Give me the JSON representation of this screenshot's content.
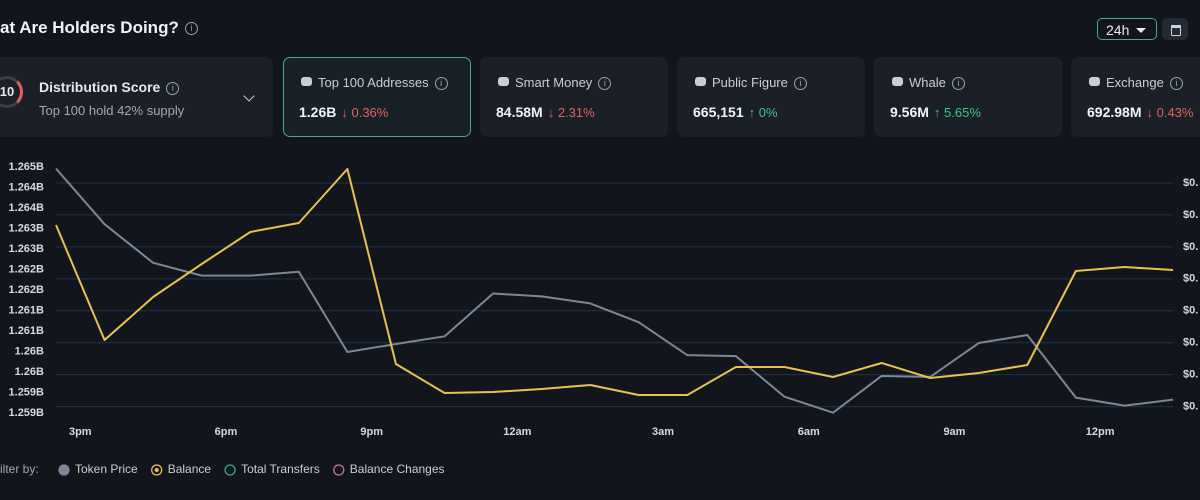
{
  "header": {
    "title": "at Are Holders Doing?",
    "period": "24h"
  },
  "distribution": {
    "score": "10",
    "title": "Distribution Score",
    "subtitle": "Top 100 hold 42% supply"
  },
  "cards": [
    {
      "label": "Top 100 Addresses",
      "value": "1.26B",
      "change": "↓ 0.36%",
      "selected": true
    },
    {
      "label": "Smart Money",
      "value": "84.58M",
      "change": "↓ 2.31%",
      "selected": false
    },
    {
      "label": "Public Figure",
      "value": "665,151",
      "change": "↑ 0%",
      "selected": false
    },
    {
      "label": "Whale",
      "value": "9.56M",
      "change": "↑ 5.65%",
      "selected": false
    },
    {
      "label": "Exchange",
      "value": "692.98M",
      "change": "↓ 0.43%",
      "selected": false
    }
  ],
  "chart_data": {
    "type": "line",
    "x": [
      0,
      1,
      2,
      3,
      4,
      5,
      6,
      7,
      8,
      9,
      10,
      11,
      12,
      13,
      14,
      15,
      16,
      17,
      18,
      19,
      20,
      21,
      22,
      23
    ],
    "xlim": [
      0,
      23
    ],
    "xticks": [
      {
        "value": 0.5,
        "label": "3pm"
      },
      {
        "value": 3.5,
        "label": "6pm"
      },
      {
        "value": 6.5,
        "label": "9pm"
      },
      {
        "value": 9.5,
        "label": "12am"
      },
      {
        "value": 12.5,
        "label": "3am"
      },
      {
        "value": 15.5,
        "label": "6am"
      },
      {
        "value": 18.5,
        "label": "9am"
      },
      {
        "value": 21.5,
        "label": "12pm"
      }
    ],
    "ylim": [
      1259000000,
      1265000000
    ],
    "yticks": [
      {
        "value": 1265000000,
        "label": "1.265B"
      },
      {
        "value": 1264500000,
        "label": "1.264B"
      },
      {
        "value": 1264000000,
        "label": "1.264B"
      },
      {
        "value": 1263500000,
        "label": "1.263B"
      },
      {
        "value": 1263000000,
        "label": "1.263B"
      },
      {
        "value": 1262500000,
        "label": "1.262B"
      },
      {
        "value": 1262000000,
        "label": "1.262B"
      },
      {
        "value": 1261500000,
        "label": "1.261B"
      },
      {
        "value": 1261000000,
        "label": "1.261B"
      },
      {
        "value": 1260500000,
        "label": "1.26B"
      },
      {
        "value": 1260000000,
        "label": "1.26B"
      },
      {
        "value": 1259500000,
        "label": "1.259B"
      },
      {
        "value": 1259000000,
        "label": "1.259B"
      }
    ],
    "y2lim": [
      0.08,
      0.85
    ],
    "y2ticks": [
      {
        "value": 0.8,
        "label": "$0."
      },
      {
        "value": 0.7,
        "label": "$0."
      },
      {
        "value": 0.6,
        "label": "$0."
      },
      {
        "value": 0.5,
        "label": "$0."
      },
      {
        "value": 0.4,
        "label": "$0."
      },
      {
        "value": 0.3,
        "label": "$0."
      },
      {
        "value": 0.2,
        "label": "$0."
      },
      {
        "value": 0.1,
        "label": "$0."
      }
    ],
    "grid": true,
    "series": [
      {
        "name": "Token Price",
        "color": "#7d8796",
        "axis": "y2",
        "checked": false,
        "values": [
          0.845,
          0.671,
          0.55,
          0.51,
          0.51,
          0.522,
          0.271,
          0.296,
          0.32,
          0.454,
          0.445,
          0.423,
          0.364,
          0.261,
          0.258,
          0.131,
          0.081,
          0.196,
          0.193,
          0.299,
          0.324,
          0.128,
          0.103,
          0.122
        ]
      },
      {
        "name": "Balance",
        "color": "#e9c14f",
        "checked": true,
        "values": [
          1263585000,
          1260780000,
          1261829000,
          1262634000,
          1263415000,
          1263634000,
          1264951000,
          1260195000,
          1259488000,
          1259512000,
          1259585000,
          1259683000,
          1259439000,
          1259439000,
          1260122000,
          1260122000,
          1259878000,
          1260220000,
          1259854000,
          1259976000,
          1260171000,
          1262463000,
          1262561000,
          1262488000
        ]
      }
    ],
    "legend_title": "ilter by:",
    "legend_extra": [
      {
        "name": "Total Transfers",
        "color": "#3aa597"
      },
      {
        "name": "Balance Changes",
        "color": "#c86fa8"
      }
    ]
  }
}
